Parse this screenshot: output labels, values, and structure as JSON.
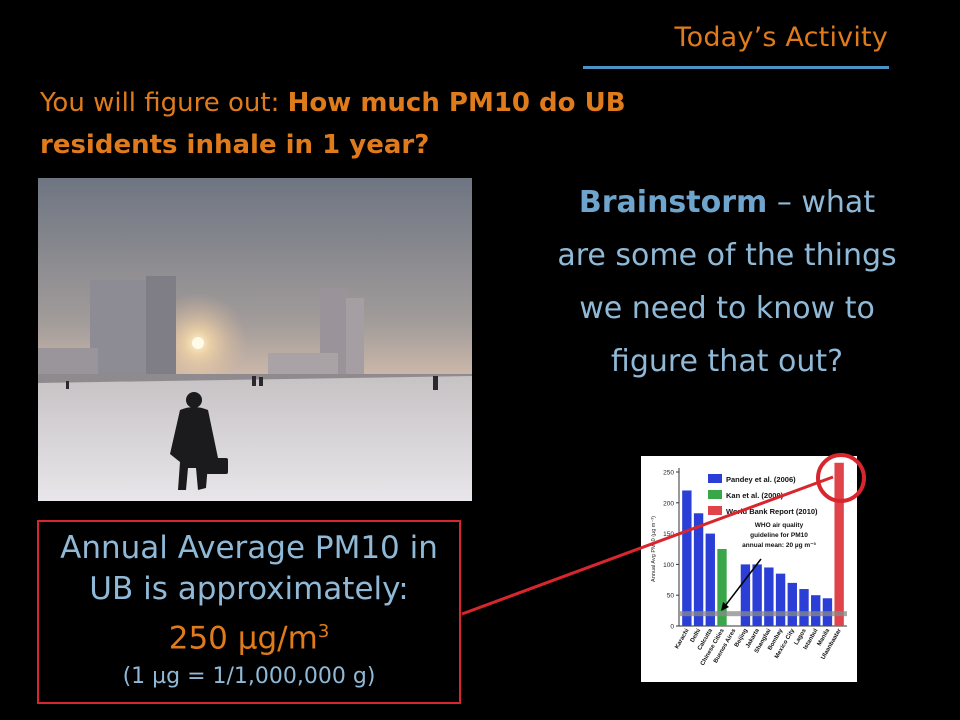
{
  "header": {
    "title": "Today’s Activity"
  },
  "intro": {
    "prefix": "You will figure out: ",
    "question": "How much PM10 do UB residents inhale in 1 year?"
  },
  "brainstorm": {
    "bold": "Brainstorm",
    "rest": " – what are some of the things we need to know to figure that out?"
  },
  "callout": {
    "line1": "Annual Average PM10 in UB is approximately:",
    "value": "250 µg/m",
    "exponent": "3",
    "note": "(1 µg = 1/1,000,000 g)"
  },
  "colors": {
    "accent_orange": "#e07b1c",
    "text_blue": "#8fb9d6",
    "rule_blue": "#4a93c4",
    "highlight_red": "#d8262e"
  },
  "chart_data": {
    "type": "bar",
    "ylabel": "Annual Avg PM10 (µg m⁻³)",
    "ylim": [
      0,
      250
    ],
    "yticks": [
      0,
      50,
      100,
      150,
      200,
      250
    ],
    "categories": [
      "Karachi",
      "Delhi",
      "Calcutta",
      "Chinese Cities",
      "Buenos Aires",
      "Beijing",
      "Jakarta",
      "Shanghai",
      "Bombay",
      "Mexico City",
      "Lagos",
      "Istanbul",
      "Manila",
      "Ulaanbaatar"
    ],
    "series": [
      {
        "name": "Pandey et al. (2006)",
        "color": "#2b3fd6",
        "values": [
          220,
          183,
          150,
          null,
          null,
          100,
          100,
          95,
          85,
          70,
          60,
          50,
          45,
          null
        ]
      },
      {
        "name": "Kan et al. (2009)",
        "color": "#3aa64a",
        "values": [
          null,
          null,
          null,
          125,
          null,
          null,
          null,
          null,
          null,
          null,
          null,
          null,
          null,
          null
        ]
      },
      {
        "name": "World Bank Report (2010)",
        "color": "#e0444a",
        "values": [
          null,
          null,
          null,
          null,
          null,
          null,
          null,
          null,
          null,
          null,
          null,
          null,
          null,
          265
        ]
      }
    ],
    "annotation": [
      "WHO air quality",
      "guideline for PM10",
      "annual mean: 20 µg m⁻³"
    ],
    "guideline": 20
  }
}
